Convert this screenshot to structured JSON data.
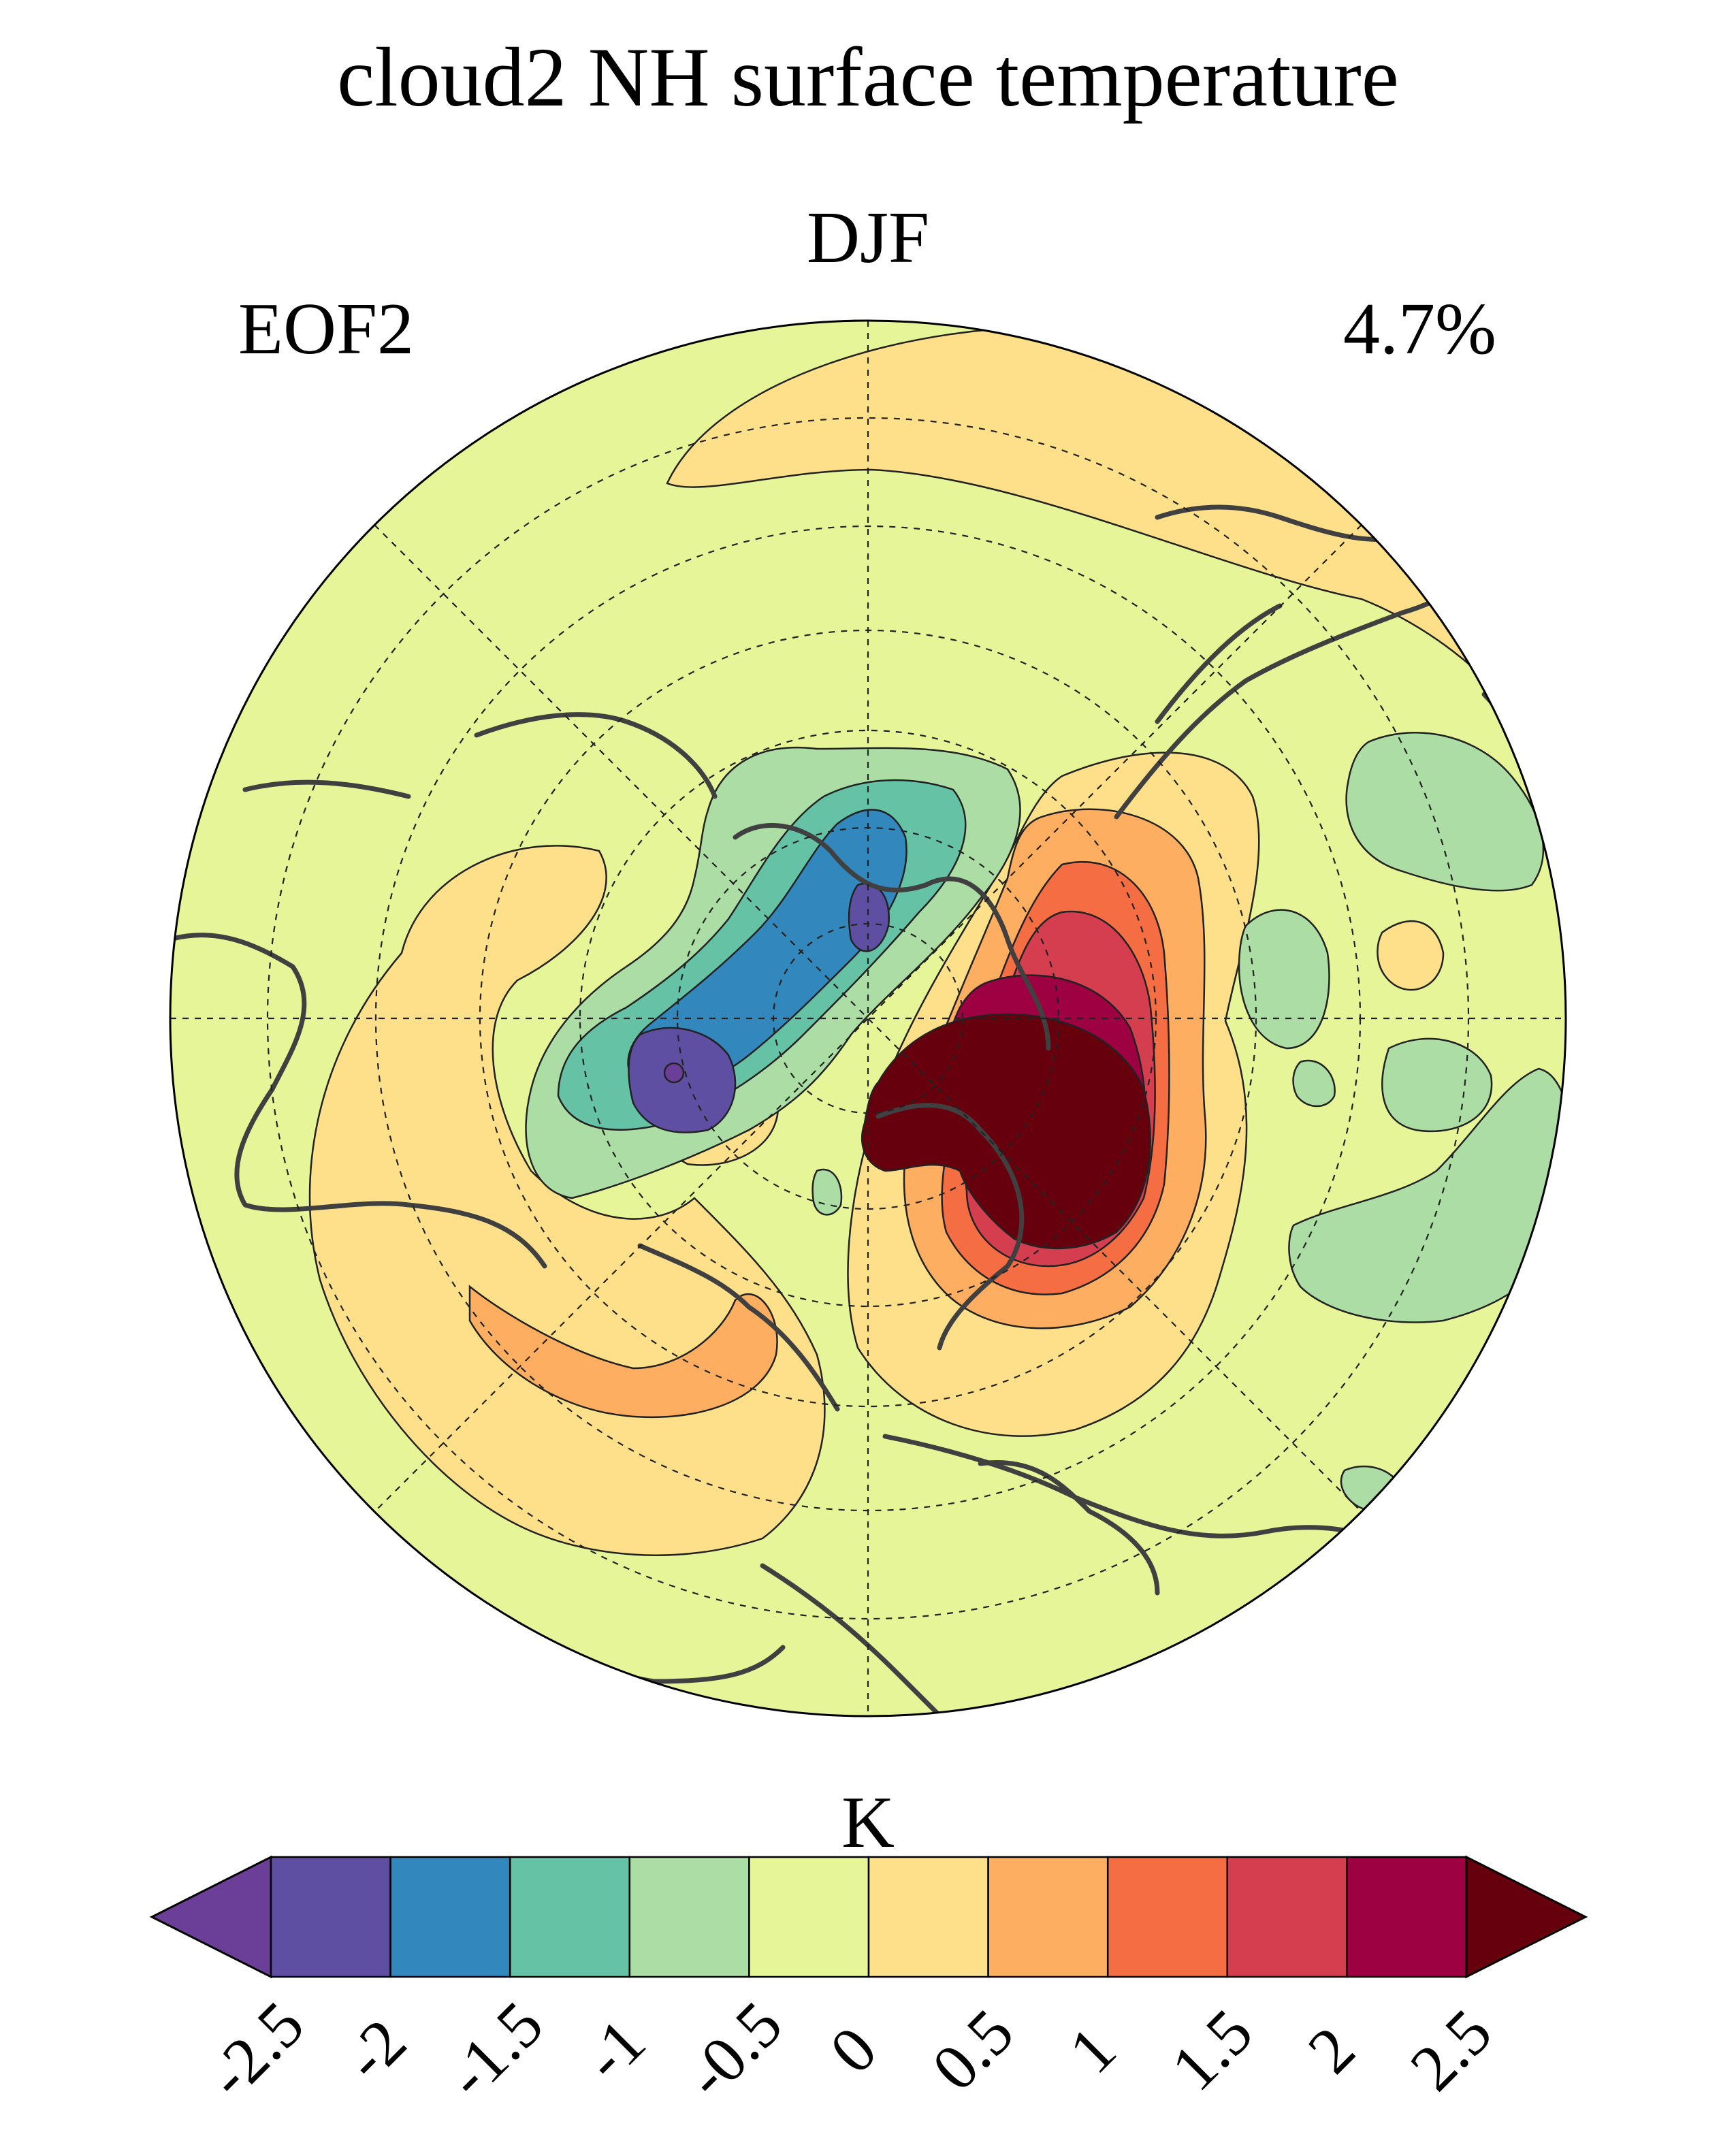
{
  "title": "cloud2 NH surface temperature",
  "season": "DJF",
  "mode": "EOF2",
  "variance": "4.7%",
  "colorbar": {
    "unit": "K",
    "ticks": [
      "-2.5",
      "-2",
      "-1.5",
      "-1",
      "-0.5",
      "0",
      "0.5",
      "1",
      "1.5",
      "2",
      "2.5"
    ],
    "levels": [
      -2.5,
      -2,
      -1.5,
      -1,
      -0.5,
      0,
      0.5,
      1,
      1.5,
      2,
      2.5
    ],
    "colors": [
      "#5e4fa2",
      "#3288bd",
      "#66c2a5",
      "#abdda4",
      "#e6f598",
      "#fee08b",
      "#fdae61",
      "#f46d43",
      "#d53e4f",
      "#9e0142"
    ],
    "under_color": "#6b3f98",
    "over_color": "#67000d",
    "extend": "both"
  },
  "map": {
    "projection": "north-polar-stereographic",
    "background_color": "#e6f598",
    "coastline_color": "#404040",
    "gridline_style": "dashed"
  }
}
